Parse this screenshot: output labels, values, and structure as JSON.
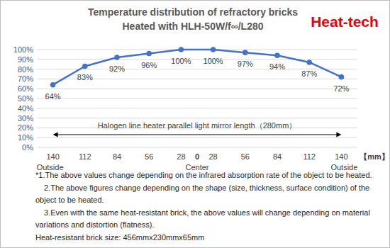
{
  "chart_data": {
    "type": "line",
    "title": "Temperature distribution of refractory bricks",
    "subtitle": "Heated with HLH-50W/f∞/L280",
    "brand": "Heat-tech",
    "categories": [
      "140",
      "112",
      "84",
      "56",
      "28",
      "28",
      "56",
      "84",
      "112",
      "140"
    ],
    "values": [
      64,
      83,
      92,
      96,
      100,
      100,
      97,
      94,
      87,
      72
    ],
    "value_labels": [
      "64%",
      "83%",
      "92%",
      "96%",
      "100%",
      "100%",
      "97%",
      "94%",
      "87%",
      "72%"
    ],
    "color": "#4472c4",
    "marker": "circle",
    "line_style": "solid",
    "data_labels": true,
    "grid": true,
    "ylim": [
      0,
      100
    ],
    "yticks": [
      {
        "value": 0,
        "label": "0%"
      },
      {
        "value": 10,
        "label": "10%"
      },
      {
        "value": 20,
        "label": "20%"
      },
      {
        "value": 30,
        "label": "30%"
      },
      {
        "value": 40,
        "label": "40%"
      },
      {
        "value": 50,
        "label": "50%"
      },
      {
        "value": 60,
        "label": "60%"
      },
      {
        "value": 70,
        "label": "70%"
      },
      {
        "value": 80,
        "label": "80%"
      },
      {
        "value": 90,
        "label": "90%"
      },
      {
        "value": 100,
        "label": "100%"
      }
    ],
    "annotations": {
      "span": "Halogen line heater parallel light mirror length（280mm）",
      "center_tick": "0",
      "center_caption": "Center",
      "end_captions": [
        "Outside",
        "Outside"
      ],
      "unit": "【mm】"
    },
    "notes": [
      "*1.The above values change depending on the infrared absorption rate of the object to be heated.",
      "2.The above figures change depending on the shape (size, thickness, surface condition) of the",
      "object to be heated.",
      "3.Even with the same heat-resistant brick, the above values will change depending on material",
      "variations and distortion (flatness).",
      "Heat-resistant brick size: 456mmx230mmx65mm"
    ]
  }
}
